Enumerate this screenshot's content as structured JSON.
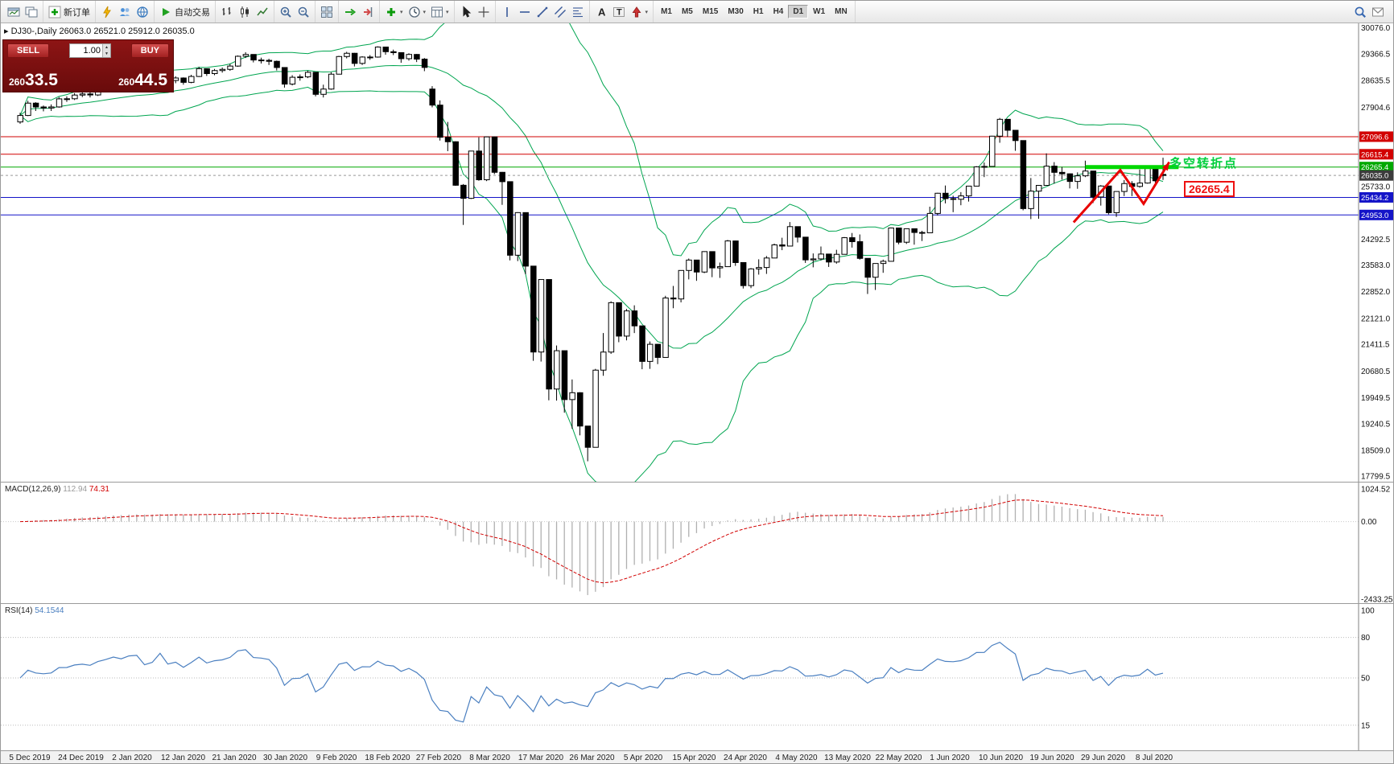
{
  "toolbar": {
    "groups": [
      {
        "items": [
          {
            "icon": "new-window-icon"
          },
          {
            "icon": "chart-profiles-icon"
          }
        ]
      },
      {
        "items": [
          {
            "icon": "new-order-icon",
            "label": "新订单"
          }
        ]
      },
      {
        "items": [
          {
            "icon": "notification-icon"
          },
          {
            "icon": "community-icon"
          },
          {
            "icon": "market-icon"
          }
        ]
      },
      {
        "items": [
          {
            "icon": "autotrading-icon",
            "label": "自动交易"
          }
        ]
      },
      {
        "items": [
          {
            "icon": "bar-chart-icon"
          },
          {
            "icon": "candlestick-chart-icon"
          },
          {
            "icon": "line-chart-icon"
          }
        ]
      },
      {
        "items": [
          {
            "icon": "zoom-in-icon"
          },
          {
            "icon": "zoom-out-icon"
          }
        ]
      },
      {
        "items": [
          {
            "icon": "tile-windows-icon"
          }
        ]
      },
      {
        "items": [
          {
            "icon": "auto-scroll-icon"
          },
          {
            "icon": "chart-shift-icon"
          }
        ]
      },
      {
        "items": [
          {
            "icon": "indicators-icon",
            "dropdown": true
          },
          {
            "icon": "periods-icon",
            "dropdown": true
          },
          {
            "icon": "templates-icon",
            "dropdown": true
          }
        ]
      },
      {
        "items": [
          {
            "icon": "cursor-icon"
          },
          {
            "icon": "crosshair-icon"
          }
        ]
      },
      {
        "items": [
          {
            "icon": "vertical-line-icon"
          },
          {
            "icon": "horizontal-line-icon"
          },
          {
            "icon": "trendline-icon"
          },
          {
            "icon": "channel-icon"
          },
          {
            "icon": "fibonacci-icon"
          }
        ]
      },
      {
        "items": [
          {
            "icon": "text-icon"
          },
          {
            "icon": "text-label-icon"
          },
          {
            "icon": "arrow-tools-icon",
            "dropdown": true
          }
        ]
      }
    ],
    "timeframes": [
      {
        "label": "M1"
      },
      {
        "label": "M5"
      },
      {
        "label": "M15"
      },
      {
        "label": "M30"
      },
      {
        "label": "H1"
      },
      {
        "label": "H4"
      },
      {
        "label": "D1",
        "active": true
      },
      {
        "label": "W1"
      },
      {
        "label": "MN"
      }
    ],
    "right_items": [
      {
        "icon": "search-icon"
      },
      {
        "icon": "new-message-icon"
      }
    ]
  },
  "symbol_bar": {
    "collapse_glyph": "▸",
    "text": "DJ30-,Daily  26063.0 26521.0 25912.0 26035.0"
  },
  "trade_panel": {
    "sell_label": "SELL",
    "buy_label": "BUY",
    "lot_value": "1.00",
    "sell_price": {
      "prefix": "260",
      "big": "33.5"
    },
    "buy_price": {
      "prefix": "260",
      "big": "44.5"
    }
  },
  "annotations": {
    "turning_point_text": "多空转折点",
    "price_tag": "26265.4"
  },
  "chart_data": {
    "type": "candlestick",
    "symbol": "DJ30-",
    "period": "Daily",
    "ohlc": {
      "open": 26063.0,
      "high": 26521.0,
      "low": 25912.0,
      "close": 26035.0
    },
    "x_labels": [
      "5 Dec 2019",
      "24 Dec 2019",
      "2 Jan 2020",
      "12 Jan 2020",
      "21 Jan 2020",
      "30 Jan 2020",
      "9 Feb 2020",
      "18 Feb 2020",
      "27 Feb 2020",
      "8 Mar 2020",
      "17 Mar 2020",
      "26 Mar 2020",
      "5 Apr 2020",
      "15 Apr 2020",
      "24 Apr 2020",
      "4 May 2020",
      "13 May 2020",
      "22 May 2020",
      "1 Jun 2020",
      "10 Jun 2020",
      "19 Jun 2020",
      "29 Jun 2020",
      "8 Jul 2020"
    ],
    "y_axis": {
      "min": 17650,
      "max": 30200,
      "ticks": [
        "30076.0",
        "29366.5",
        "28635.5",
        "27904.6",
        "25733.0",
        "24292.5",
        "23583.0",
        "22852.0",
        "22121.0",
        "21411.5",
        "20680.5",
        "19949.5",
        "19240.5",
        "18509.0",
        "17799.5"
      ]
    },
    "candles": [
      [
        27500,
        27750,
        27450,
        27677
      ],
      [
        27677,
        28080,
        27660,
        28015
      ],
      [
        28015,
        28040,
        27800,
        27910
      ],
      [
        27910,
        27950,
        27790,
        27882
      ],
      [
        27882,
        27980,
        27800,
        27911
      ],
      [
        27911,
        28180,
        27890,
        28132
      ],
      [
        28132,
        28200,
        28050,
        28135
      ],
      [
        28135,
        28290,
        28100,
        28236
      ],
      [
        28236,
        28340,
        28180,
        28267
      ],
      [
        28267,
        28310,
        28170,
        28239
      ],
      [
        28239,
        28420,
        28210,
        28377
      ],
      [
        28377,
        28510,
        28340,
        28455
      ],
      [
        28455,
        28600,
        28420,
        28552
      ],
      [
        28552,
        28580,
        28450,
        28516
      ],
      [
        28516,
        28680,
        28500,
        28622
      ],
      [
        28622,
        28700,
        28560,
        28645
      ],
      [
        28645,
        28670,
        28410,
        28462
      ],
      [
        28462,
        28600,
        28420,
        28538
      ],
      [
        28538,
        28910,
        28530,
        28869
      ],
      [
        28869,
        28880,
        28580,
        28635
      ],
      [
        28635,
        28750,
        28560,
        28703
      ],
      [
        28703,
        28720,
        28520,
        28584
      ],
      [
        28584,
        28790,
        28560,
        28745
      ],
      [
        28745,
        29010,
        28730,
        28957
      ],
      [
        28957,
        28960,
        28760,
        28824
      ],
      [
        28824,
        28950,
        28780,
        28907
      ],
      [
        28907,
        28990,
        28850,
        28939
      ],
      [
        28939,
        29090,
        28900,
        29030
      ],
      [
        29030,
        29320,
        29010,
        29298
      ],
      [
        29298,
        29410,
        29250,
        29348
      ],
      [
        29348,
        29350,
        29130,
        29196
      ],
      [
        29196,
        29260,
        29100,
        29186
      ],
      [
        29186,
        29230,
        29060,
        29160
      ],
      [
        29160,
        29180,
        28910,
        28990
      ],
      [
        28990,
        29000,
        28440,
        28536
      ],
      [
        28536,
        28780,
        28500,
        28723
      ],
      [
        28723,
        28800,
        28630,
        28734
      ],
      [
        28734,
        28900,
        28700,
        28859
      ],
      [
        28859,
        28860,
        28200,
        28256
      ],
      [
        28256,
        28520,
        28170,
        28400
      ],
      [
        28400,
        28860,
        28380,
        28808
      ],
      [
        28808,
        29310,
        28800,
        29291
      ],
      [
        29291,
        29420,
        29240,
        29380
      ],
      [
        29380,
        29390,
        29020,
        29103
      ],
      [
        29103,
        29300,
        29060,
        29277
      ],
      [
        29277,
        29330,
        29200,
        29276
      ],
      [
        29276,
        29570,
        29260,
        29551
      ],
      [
        29551,
        29560,
        29340,
        29423
      ],
      [
        29423,
        29480,
        29330,
        29398
      ],
      [
        29398,
        29400,
        29120,
        29232
      ],
      [
        29232,
        29380,
        29180,
        29348
      ],
      [
        29348,
        29360,
        29140,
        29220
      ],
      [
        29220,
        29250,
        28890,
        28992
      ],
      [
        28400,
        28480,
        27900,
        27961
      ],
      [
        27961,
        28090,
        26990,
        27081
      ],
      [
        27081,
        27500,
        26700,
        26958
      ],
      [
        26958,
        26970,
        25750,
        25767
      ],
      [
        25767,
        25800,
        24680,
        25409
      ],
      [
        25409,
        26710,
        25390,
        26703
      ],
      [
        26703,
        27080,
        25890,
        25917
      ],
      [
        25917,
        27100,
        25880,
        27091
      ],
      [
        27091,
        27100,
        26070,
        26121
      ],
      [
        26121,
        26130,
        25230,
        25865
      ],
      [
        25865,
        25870,
        23710,
        23851
      ],
      [
        23851,
        25030,
        23690,
        25018
      ],
      [
        25018,
        25020,
        23330,
        23553
      ],
      [
        23553,
        23560,
        20960,
        21201
      ],
      [
        21201,
        23190,
        20940,
        23186
      ],
      [
        23186,
        23190,
        19880,
        20188
      ],
      [
        20188,
        21380,
        19870,
        21237
      ],
      [
        21237,
        21240,
        19540,
        19899
      ],
      [
        19899,
        20450,
        19100,
        20087
      ],
      [
        20087,
        20100,
        18920,
        19174
      ],
      [
        19174,
        19180,
        18210,
        18592
      ],
      [
        18592,
        20740,
        18590,
        20705
      ],
      [
        20705,
        21720,
        20550,
        21200
      ],
      [
        21200,
        22590,
        21150,
        22552
      ],
      [
        22552,
        22560,
        21470,
        21637
      ],
      [
        21637,
        22380,
        21520,
        22327
      ],
      [
        22327,
        22480,
        21720,
        21917
      ],
      [
        21917,
        21920,
        20730,
        20944
      ],
      [
        20944,
        21490,
        20740,
        21413
      ],
      [
        21413,
        21420,
        20870,
        21053
      ],
      [
        21053,
        22740,
        21050,
        22680
      ],
      [
        22680,
        23010,
        22400,
        22654
      ],
      [
        22654,
        23440,
        22560,
        23434
      ],
      [
        23434,
        23760,
        23190,
        23719
      ],
      [
        23719,
        23720,
        23150,
        23391
      ],
      [
        23391,
        23960,
        23360,
        23950
      ],
      [
        23950,
        23950,
        23250,
        23504
      ],
      [
        23504,
        23650,
        23230,
        23538
      ],
      [
        23538,
        24270,
        23530,
        24242
      ],
      [
        24242,
        24250,
        23560,
        23650
      ],
      [
        23650,
        23660,
        22940,
        23019
      ],
      [
        23019,
        23500,
        22950,
        23476
      ],
      [
        23476,
        23740,
        23320,
        23515
      ],
      [
        23515,
        23830,
        23340,
        23775
      ],
      [
        23775,
        24170,
        23770,
        24134
      ],
      [
        24134,
        24330,
        23990,
        24102
      ],
      [
        24102,
        24760,
        24100,
        24634
      ],
      [
        24634,
        24640,
        24200,
        24346
      ],
      [
        24346,
        24350,
        23640,
        23724
      ],
      [
        23724,
        23900,
        23520,
        23750
      ],
      [
        23750,
        24090,
        23710,
        23883
      ],
      [
        23883,
        23890,
        23530,
        23665
      ],
      [
        23665,
        24000,
        23620,
        23876
      ],
      [
        23876,
        24350,
        23870,
        24331
      ],
      [
        24331,
        24460,
        24060,
        24222
      ],
      [
        24222,
        24420,
        23730,
        23765
      ],
      [
        23765,
        23770,
        22790,
        23248
      ],
      [
        23248,
        23630,
        22900,
        23625
      ],
      [
        23625,
        23730,
        23370,
        23685
      ],
      [
        23685,
        24610,
        23680,
        24597
      ],
      [
        24597,
        24600,
        24150,
        24207
      ],
      [
        24207,
        24580,
        24160,
        24576
      ],
      [
        24576,
        24580,
        24140,
        24474
      ],
      [
        24474,
        24520,
        24240,
        24465
      ],
      [
        24465,
        25180,
        24460,
        24995
      ],
      [
        24995,
        25560,
        24940,
        25548
      ],
      [
        25548,
        25760,
        25270,
        25401
      ],
      [
        25401,
        25480,
        25030,
        25383
      ],
      [
        25383,
        25580,
        25220,
        25475
      ],
      [
        25475,
        25750,
        25320,
        25743
      ],
      [
        25743,
        26290,
        25740,
        26270
      ],
      [
        26270,
        26390,
        25990,
        26282
      ],
      [
        26282,
        27120,
        26280,
        27111
      ],
      [
        27111,
        27610,
        26930,
        27572
      ],
      [
        27572,
        27580,
        27090,
        27272
      ],
      [
        27272,
        27280,
        26710,
        26990
      ],
      [
        26990,
        26990,
        25080,
        25128
      ],
      [
        25128,
        25965,
        24840,
        25606
      ],
      [
        25606,
        25770,
        24850,
        25763
      ],
      [
        25763,
        26640,
        25760,
        26290
      ],
      [
        26290,
        26400,
        25810,
        26120
      ],
      [
        26120,
        26270,
        25920,
        26080
      ],
      [
        26080,
        26090,
        25680,
        25871
      ],
      [
        25871,
        26120,
        25670,
        26025
      ],
      [
        26025,
        26440,
        25990,
        26156
      ],
      [
        26156,
        26160,
        25280,
        25446
      ],
      [
        25446,
        25770,
        25210,
        25746
      ],
      [
        25746,
        25750,
        24970,
        25016
      ],
      [
        25016,
        25600,
        24900,
        25596
      ],
      [
        25596,
        25910,
        25470,
        25813
      ],
      [
        25813,
        25880,
        25470,
        25735
      ],
      [
        25735,
        26200,
        25700,
        25827
      ],
      [
        25827,
        26290,
        25810,
        26287
      ],
      [
        26287,
        26290,
        25840,
        25890
      ],
      [
        26063,
        26521,
        25912,
        26035
      ]
    ],
    "bollinger": {
      "period": 20,
      "deviation": 2,
      "color": "#00a550"
    },
    "levels": [
      {
        "price": 27096.6,
        "label": "27096.6",
        "color": "#d20000"
      },
      {
        "price": 26615.4,
        "label": "26615.4",
        "color": "#d20000"
      },
      {
        "price": 26265.4,
        "label": "26265.4",
        "color": "#00a800"
      },
      {
        "price": 25434.2,
        "label": "25434.2",
        "color": "#1414c8"
      },
      {
        "price": 24953.0,
        "label": "24953.0",
        "color": "#1414c8"
      }
    ],
    "current_price": {
      "price": 26035.0,
      "label": "26035.0",
      "color": "#3c3c3c"
    },
    "trend_segment": {
      "from_index": 137,
      "to_index": 149,
      "price": 26265.4,
      "color": "#00d800",
      "width": 5
    },
    "zigzag": {
      "points": [
        [
          135.5,
          24750
        ],
        [
          141.5,
          26180
        ],
        [
          144.5,
          25260
        ],
        [
          147.8,
          26400
        ]
      ],
      "color": "#e80000",
      "width": 3
    },
    "macd": {
      "name": "MACD(12,26,9)",
      "main_value": "112.94",
      "signal_value": "74.31",
      "ticks": [
        "1024.52",
        "0.00",
        "-2433.25"
      ],
      "ylim": [
        -2433.25,
        1024.52
      ],
      "histogram_color": "#b0b0b0",
      "signal_color": "#d20000"
    },
    "rsi": {
      "name": "RSI(14)",
      "value": "54.1544",
      "period": 14,
      "ticks": [
        "100",
        "80",
        "50",
        "15"
      ],
      "levels": [
        80,
        50,
        15
      ],
      "color": "#4a7fc0"
    }
  }
}
